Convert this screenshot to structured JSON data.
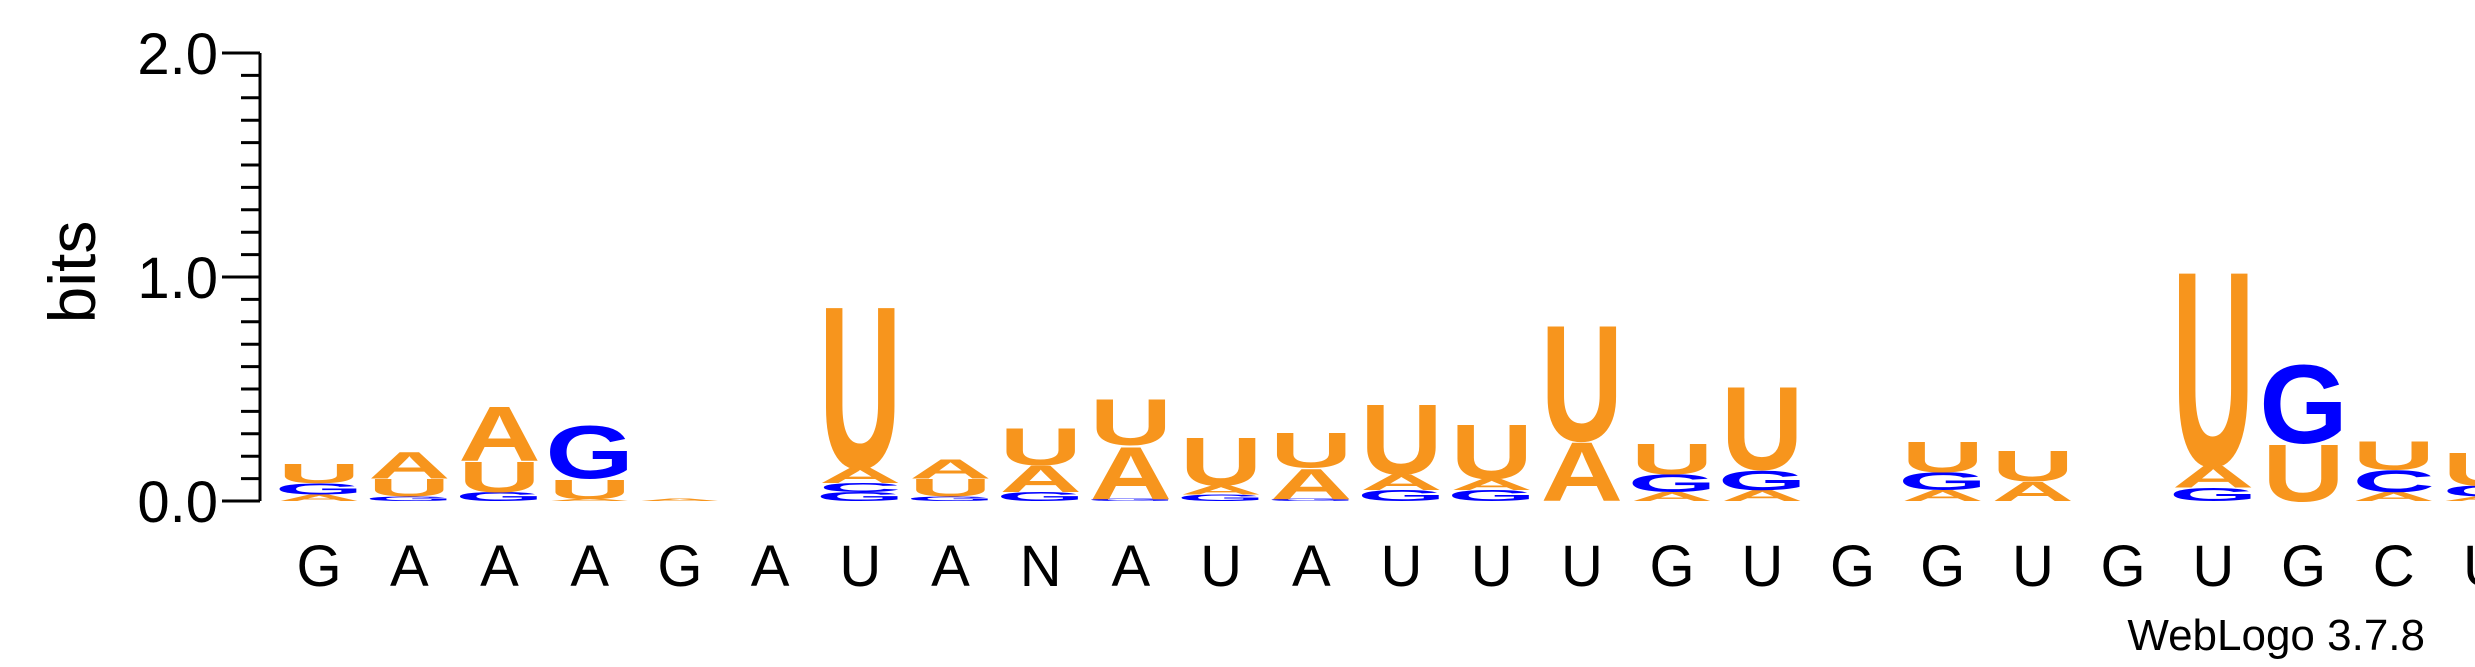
{
  "chart_data": {
    "type": "sequence-logo",
    "title": "",
    "xlabel": "",
    "ylabel": "bits",
    "ylim": [
      0,
      2.0
    ],
    "yticks": [
      {
        "value": 0,
        "label": "0.0"
      },
      {
        "value": 1,
        "label": "1.0"
      },
      {
        "value": 2,
        "label": "2.0"
      }
    ],
    "y_minor_step": 0.1,
    "credit": "WebLogo 3.7.8",
    "colors": {
      "A": "#f7951d",
      "U": "#f7951d",
      "G": "#0000ff",
      "C": "#0000ff"
    },
    "positions": [
      {
        "label": "G",
        "letters": [
          {
            "base": "A",
            "bits": 0.03
          },
          {
            "base": "G",
            "bits": 0.05
          },
          {
            "base": "U",
            "bits": 0.09
          }
        ]
      },
      {
        "label": "A",
        "letters": [
          {
            "base": "G",
            "bits": 0.02
          },
          {
            "base": "U",
            "bits": 0.08
          },
          {
            "base": "A",
            "bits": 0.12
          }
        ]
      },
      {
        "label": "A",
        "letters": [
          {
            "base": "G",
            "bits": 0.04
          },
          {
            "base": "U",
            "bits": 0.14
          },
          {
            "base": "A",
            "bits": 0.25
          }
        ]
      },
      {
        "label": "A",
        "letters": [
          {
            "base": "A",
            "bits": 0.01
          },
          {
            "base": "U",
            "bits": 0.09
          },
          {
            "base": "G",
            "bits": 0.24
          }
        ]
      },
      {
        "label": "G",
        "letters": [
          {
            "base": "A",
            "bits": 0.01
          }
        ]
      },
      {
        "label": "A",
        "letters": []
      },
      {
        "label": "U",
        "letters": [
          {
            "base": "G",
            "bits": 0.04
          },
          {
            "base": "C",
            "bits": 0.04
          },
          {
            "base": "A",
            "bits": 0.07
          },
          {
            "base": "U",
            "bits": 0.74
          }
        ]
      },
      {
        "label": "A",
        "letters": [
          {
            "base": "G",
            "bits": 0.02
          },
          {
            "base": "U",
            "bits": 0.08
          },
          {
            "base": "A",
            "bits": 0.09
          }
        ]
      },
      {
        "label": "N",
        "letters": [
          {
            "base": "G",
            "bits": 0.04
          },
          {
            "base": "A",
            "bits": 0.12
          },
          {
            "base": "U",
            "bits": 0.17
          }
        ]
      },
      {
        "label": "A",
        "letters": [
          {
            "base": "G",
            "bits": 0.01
          },
          {
            "base": "A",
            "bits": 0.24
          },
          {
            "base": "U",
            "bits": 0.21
          }
        ]
      },
      {
        "label": "U",
        "letters": [
          {
            "base": "G",
            "bits": 0.03
          },
          {
            "base": "A",
            "bits": 0.04
          },
          {
            "base": "U",
            "bits": 0.22
          }
        ]
      },
      {
        "label": "A",
        "letters": [
          {
            "base": "G",
            "bits": 0.01
          },
          {
            "base": "A",
            "bits": 0.14
          },
          {
            "base": "U",
            "bits": 0.16
          }
        ]
      },
      {
        "label": "U",
        "letters": [
          {
            "base": "G",
            "bits": 0.05
          },
          {
            "base": "A",
            "bits": 0.07
          },
          {
            "base": "U",
            "bits": 0.32
          }
        ]
      },
      {
        "label": "U",
        "letters": [
          {
            "base": "G",
            "bits": 0.05
          },
          {
            "base": "A",
            "bits": 0.05
          },
          {
            "base": "U",
            "bits": 0.25
          }
        ]
      },
      {
        "label": "U",
        "letters": [
          {
            "base": "A",
            "bits": 0.27
          },
          {
            "base": "U",
            "bits": 0.53
          }
        ]
      },
      {
        "label": "G",
        "letters": [
          {
            "base": "A",
            "bits": 0.04
          },
          {
            "base": "G",
            "bits": 0.08
          },
          {
            "base": "U",
            "bits": 0.14
          }
        ]
      },
      {
        "label": "U",
        "letters": [
          {
            "base": "A",
            "bits": 0.05
          },
          {
            "base": "G",
            "bits": 0.09
          },
          {
            "base": "U",
            "bits": 0.38
          }
        ]
      },
      {
        "label": "G",
        "letters": []
      },
      {
        "label": "G",
        "letters": [
          {
            "base": "A",
            "bits": 0.05
          },
          {
            "base": "G",
            "bits": 0.08
          },
          {
            "base": "U",
            "bits": 0.14
          }
        ]
      },
      {
        "label": "U",
        "letters": [
          {
            "base": "A",
            "bits": 0.09
          },
          {
            "base": "U",
            "bits": 0.14
          }
        ]
      },
      {
        "label": "G",
        "letters": []
      },
      {
        "label": "U",
        "letters": [
          {
            "base": "G",
            "bits": 0.06
          },
          {
            "base": "A",
            "bits": 0.1
          },
          {
            "base": "U",
            "bits": 0.89
          }
        ]
      },
      {
        "label": "G",
        "letters": [
          {
            "base": "U",
            "bits": 0.26
          },
          {
            "base": "G",
            "bits": 0.36
          }
        ]
      },
      {
        "label": "C",
        "letters": [
          {
            "base": "A",
            "bits": 0.04
          },
          {
            "base": "C",
            "bits": 0.1
          },
          {
            "base": "U",
            "bits": 0.13
          }
        ]
      },
      {
        "label": "U",
        "letters": [
          {
            "base": "A",
            "bits": 0.02
          },
          {
            "base": "C",
            "bits": 0.05
          },
          {
            "base": "U",
            "bits": 0.15
          }
        ]
      }
    ]
  }
}
